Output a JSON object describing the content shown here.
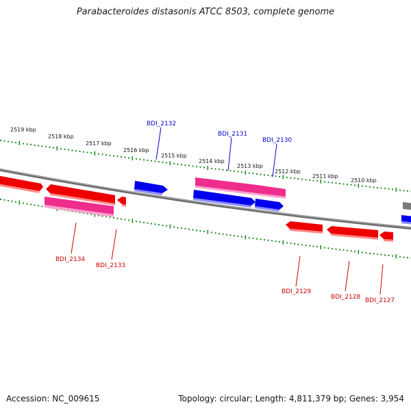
{
  "title": "Parabacteroides distasonis ATCC 8503, complete genome",
  "accession_label": "Accession: NC_009615",
  "summary": "Topology: circular; Length: 4,811,379 bp; Genes: 3,954",
  "colors": {
    "backbone": "#808080",
    "tick": "#1f8a1f",
    "plus_label": "#0000cc",
    "minus_label": "#cc0000",
    "blue_gene": "#0000ee",
    "red_gene": "#ee0000",
    "pink_gene": "#ee2d8c",
    "grey_gene": "#7a7a7a"
  },
  "kbp_labels": [
    "2519 kbp",
    "2518 kbp",
    "2517 kbp",
    "2516 kbp",
    "2515 kbp",
    "2514 kbp",
    "2513 kbp",
    "2512 kbp",
    "2511 kbp",
    "2510 kbp"
  ],
  "genes": [
    {
      "name": "BDI_2132",
      "strand": "plus"
    },
    {
      "name": "BDI_2131",
      "strand": "plus"
    },
    {
      "name": "BDI_2130",
      "strand": "plus"
    },
    {
      "name": "BDI_2134",
      "strand": "minus"
    },
    {
      "name": "BDI_2133",
      "strand": "minus"
    },
    {
      "name": "BDI_2129",
      "strand": "minus"
    },
    {
      "name": "BDI_2128",
      "strand": "minus"
    },
    {
      "name": "BDI_2127",
      "strand": "minus"
    }
  ]
}
